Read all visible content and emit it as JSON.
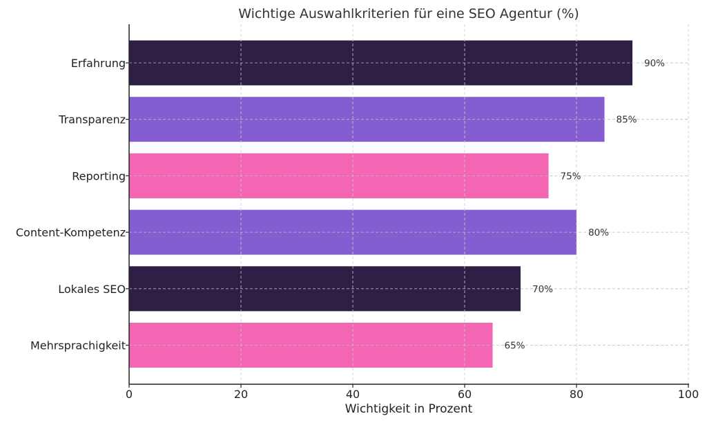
{
  "chart_data": {
    "type": "bar",
    "orientation": "horizontal",
    "title": "Wichtige Auswahlkriterien für eine SEO Agentur (%)",
    "xlabel": "Wichtigkeit in Prozent",
    "ylabel": "",
    "xlim": [
      0,
      100
    ],
    "xticks": [
      0,
      20,
      40,
      60,
      80,
      100
    ],
    "grid": true,
    "categories": [
      "Erfahrung",
      "Transparenz",
      "Reporting",
      "Content-Kompetenz",
      "Lokales SEO",
      "Mehrsprachigkeit"
    ],
    "values": [
      90,
      85,
      75,
      80,
      70,
      65
    ],
    "value_labels": [
      "90%",
      "85%",
      "75%",
      "80%",
      "70%",
      "65%"
    ],
    "colors": [
      "#2e1f45",
      "#845ed0",
      "#f266b4",
      "#845ed0",
      "#2e1f45",
      "#f266b4"
    ]
  }
}
